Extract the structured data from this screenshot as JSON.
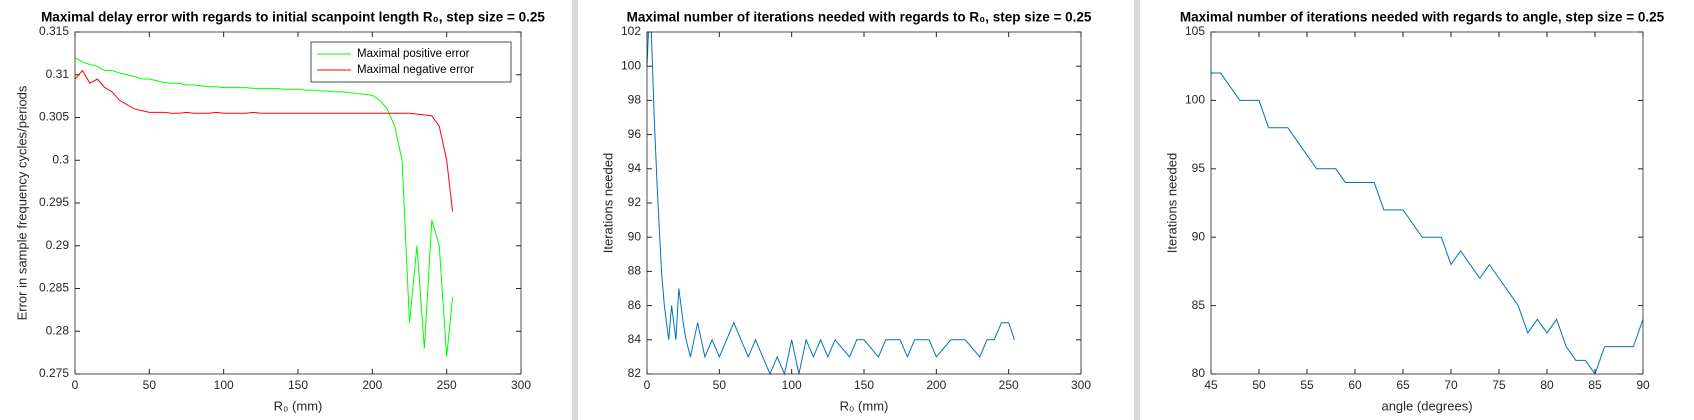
{
  "chart_data": [
    {
      "type": "line",
      "title": "Maximal delay error with regards to initial scanpoint length R₀, step size = 0.25",
      "xlabel": "R₀ (mm)",
      "ylabel": "Error in sample frequency cycles/periods",
      "x": [
        0,
        5,
        10,
        15,
        20,
        25,
        30,
        35,
        40,
        45,
        50,
        55,
        60,
        65,
        70,
        75,
        80,
        85,
        90,
        95,
        100,
        105,
        110,
        115,
        120,
        125,
        130,
        135,
        140,
        145,
        150,
        155,
        160,
        165,
        170,
        175,
        180,
        185,
        190,
        195,
        200,
        205,
        210,
        215,
        220,
        225,
        230,
        235,
        240,
        245,
        250,
        254
      ],
      "series": [
        {
          "name": "Maximal positive error",
          "color": "#00ff00",
          "values": [
            0.312,
            0.3115,
            0.3112,
            0.311,
            0.3105,
            0.3105,
            0.3102,
            0.31,
            0.3098,
            0.3095,
            0.3095,
            0.3093,
            0.3091,
            0.309,
            0.309,
            0.3088,
            0.3088,
            0.3087,
            0.3086,
            0.3086,
            0.3085,
            0.3085,
            0.3085,
            0.3085,
            0.3084,
            0.3084,
            0.3084,
            0.3084,
            0.3083,
            0.3083,
            0.3083,
            0.3082,
            0.3082,
            0.3081,
            0.3081,
            0.308,
            0.308,
            0.3079,
            0.3078,
            0.3077,
            0.3076,
            0.307,
            0.306,
            0.304,
            0.3,
            0.281,
            0.29,
            0.278,
            0.293,
            0.29,
            0.277,
            0.284
          ]
        },
        {
          "name": "Maximal negative error",
          "color": "#ff0000",
          "values": [
            0.3095,
            0.3105,
            0.309,
            0.3095,
            0.3085,
            0.308,
            0.307,
            0.3065,
            0.306,
            0.3058,
            0.3056,
            0.3056,
            0.3056,
            0.3055,
            0.3055,
            0.3056,
            0.3055,
            0.3055,
            0.3055,
            0.3056,
            0.3055,
            0.3055,
            0.3055,
            0.3055,
            0.3056,
            0.3055,
            0.3055,
            0.3055,
            0.3055,
            0.3055,
            0.3055,
            0.3055,
            0.3055,
            0.3055,
            0.3055,
            0.3055,
            0.3055,
            0.3055,
            0.3055,
            0.3055,
            0.3055,
            0.3055,
            0.3055,
            0.3055,
            0.3055,
            0.3055,
            0.3054,
            0.3053,
            0.3052,
            0.304,
            0.3,
            0.294
          ]
        }
      ],
      "xlim": [
        0,
        300
      ],
      "xticks": [
        0,
        50,
        100,
        150,
        200,
        250,
        300
      ],
      "ylim": [
        0.275,
        0.315
      ],
      "yticks": [
        0.275,
        0.28,
        0.285,
        0.29,
        0.295,
        0.3,
        0.305,
        0.31,
        0.315
      ],
      "legend": "northeast"
    },
    {
      "type": "line",
      "title": "Maximal number of iterations needed with regards to R₀, step size = 0.25",
      "xlabel": "R₀ (mm)",
      "ylabel": "Iterations needed",
      "x": [
        0,
        1,
        3,
        5,
        7,
        10,
        12,
        15,
        17,
        20,
        22,
        25,
        27,
        30,
        35,
        40,
        45,
        50,
        55,
        60,
        65,
        70,
        75,
        80,
        85,
        90,
        95,
        100,
        105,
        110,
        115,
        120,
        125,
        130,
        140,
        145,
        150,
        160,
        165,
        175,
        180,
        185,
        195,
        200,
        210,
        220,
        230,
        235,
        240,
        245,
        250,
        254
      ],
      "series": [
        {
          "name": "Iterations",
          "color": "#0072bd",
          "values": [
            100,
            102,
            102,
            97,
            93,
            88,
            86,
            84,
            86,
            84,
            87,
            85,
            84,
            83,
            85,
            83,
            84,
            83,
            84,
            85,
            84,
            83,
            84,
            83,
            82,
            83,
            82,
            84,
            82,
            84,
            83,
            84,
            83,
            84,
            83,
            84,
            84,
            83,
            84,
            84,
            83,
            84,
            84,
            83,
            84,
            84,
            83,
            84,
            84,
            85,
            85,
            84
          ]
        }
      ],
      "xlim": [
        0,
        300
      ],
      "xticks": [
        0,
        50,
        100,
        150,
        200,
        250,
        300
      ],
      "ylim": [
        82,
        102
      ],
      "yticks": [
        82,
        84,
        86,
        88,
        90,
        92,
        94,
        96,
        98,
        100,
        102
      ]
    },
    {
      "type": "line",
      "title": "Maximal number of iterations needed with regards to angle, step size = 0.25",
      "xlabel": "angle (degrees)",
      "ylabel": "Iterations needed",
      "x": [
        45,
        46,
        47,
        48,
        49,
        50,
        51,
        52,
        53,
        54,
        55,
        56,
        57,
        58,
        59,
        60,
        61,
        62,
        63,
        64,
        65,
        66,
        67,
        68,
        69,
        70,
        71,
        72,
        73,
        74,
        75,
        76,
        77,
        78,
        79,
        80,
        81,
        82,
        83,
        84,
        85,
        86,
        87,
        88,
        89,
        90
      ],
      "series": [
        {
          "name": "Iterations",
          "color": "#0072bd",
          "values": [
            102,
            102,
            101,
            100,
            100,
            100,
            98,
            98,
            98,
            97,
            96,
            95,
            95,
            95,
            94,
            94,
            94,
            94,
            92,
            92,
            92,
            91,
            90,
            90,
            90,
            88,
            89,
            88,
            87,
            88,
            87,
            86,
            85,
            83,
            84,
            83,
            84,
            82,
            81,
            81,
            80,
            82,
            82,
            82,
            82,
            84
          ]
        }
      ],
      "xlim": [
        45,
        90
      ],
      "xticks": [
        45,
        50,
        55,
        60,
        65,
        70,
        75,
        80,
        85,
        90
      ],
      "ylim": [
        80,
        105
      ],
      "yticks": [
        80,
        85,
        90,
        95,
        100,
        105
      ]
    }
  ]
}
